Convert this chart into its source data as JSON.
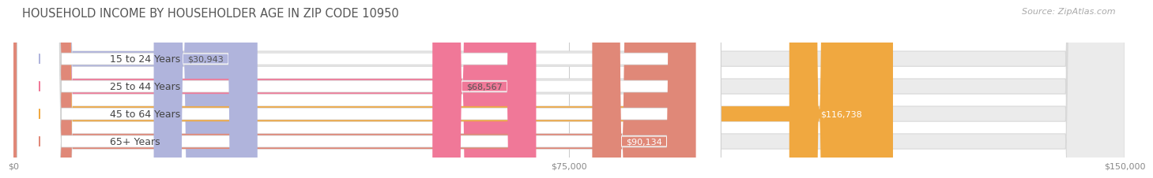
{
  "title": "HOUSEHOLD INCOME BY HOUSEHOLDER AGE IN ZIP CODE 10950",
  "source": "Source: ZipAtlas.com",
  "categories": [
    "15 to 24 Years",
    "25 to 44 Years",
    "45 to 64 Years",
    "65+ Years"
  ],
  "values": [
    30943,
    68567,
    116738,
    90134
  ],
  "bar_colors": [
    "#b0b4dc",
    "#f07898",
    "#f0a840",
    "#e08878"
  ],
  "value_labels": [
    "$30,943",
    "$68,567",
    "$116,738",
    "$90,134"
  ],
  "value_label_bg": [
    "#b0b4dc",
    "#f07898",
    "#f0a840",
    "#e08878"
  ],
  "value_label_color": [
    "#555555",
    "#555555",
    "#ffffff",
    "#ffffff"
  ],
  "xlim": [
    0,
    150000
  ],
  "xticks": [
    0,
    75000,
    150000
  ],
  "xticklabels": [
    "$0",
    "$75,000",
    "$150,000"
  ],
  "background_color": "#ffffff",
  "bar_bg_color": "#ebebeb",
  "bar_bg_edge_color": "#d8d8d8",
  "title_fontsize": 10.5,
  "source_fontsize": 8,
  "label_fontsize": 9,
  "value_fontsize": 8
}
